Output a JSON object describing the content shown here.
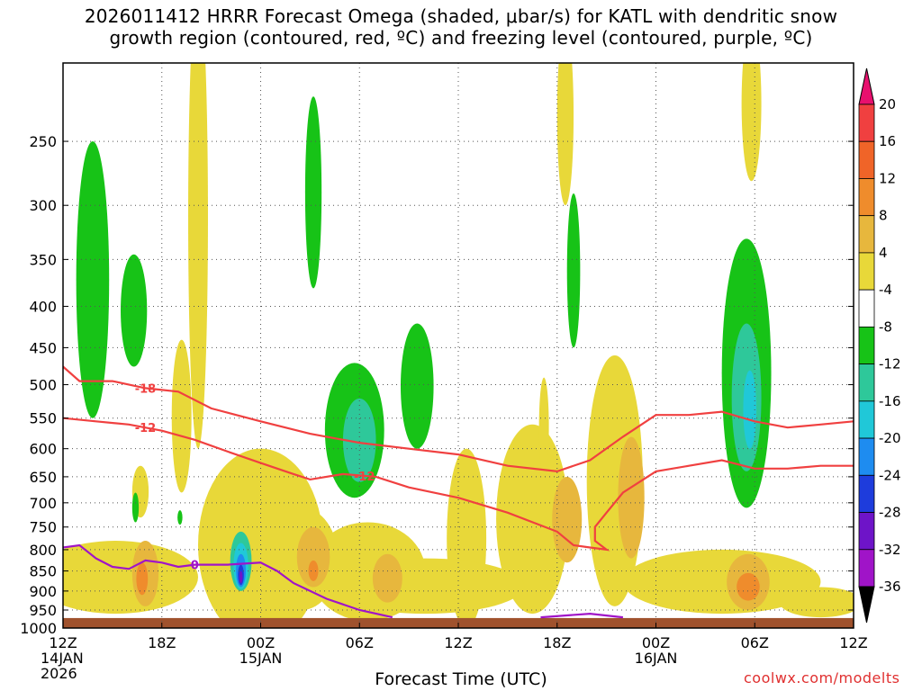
{
  "chart_data": {
    "type": "contour_time_height",
    "title_line1": "2026011412 HRRR Forecast Omega (shaded, μbar/s) for KATL with dendritic snow",
    "title_line2": "growth region (contoured, red, ºC) and freezing level (contoured, purple, ºC)",
    "xlabel": "Forecast Time (UTC)",
    "credit": "coolwx.com/modelts",
    "x_range_hours": [
      0,
      48
    ],
    "y_range_hpa": [
      200,
      1000
    ],
    "y_ticks": [
      250,
      300,
      350,
      400,
      450,
      500,
      550,
      600,
      650,
      700,
      750,
      800,
      850,
      900,
      950,
      1000
    ],
    "x_ticks": [
      {
        "hour": 0,
        "lines": [
          "12Z",
          "14JAN",
          "2026"
        ]
      },
      {
        "hour": 6,
        "lines": [
          "18Z"
        ]
      },
      {
        "hour": 12,
        "lines": [
          "00Z",
          "15JAN"
        ]
      },
      {
        "hour": 18,
        "lines": [
          "06Z"
        ]
      },
      {
        "hour": 24,
        "lines": [
          "12Z"
        ]
      },
      {
        "hour": 30,
        "lines": [
          "18Z"
        ]
      },
      {
        "hour": 36,
        "lines": [
          "00Z",
          "16JAN"
        ]
      },
      {
        "hour": 42,
        "lines": [
          "06Z"
        ]
      },
      {
        "hour": 48,
        "lines": [
          "12Z"
        ]
      }
    ],
    "colorbar": {
      "labels": [
        "20",
        "16",
        "12",
        "8",
        "4",
        "-4",
        "-8",
        "-12",
        "-16",
        "-20",
        "-24",
        "-28",
        "-32",
        "-36"
      ],
      "colors": [
        "#e8106e",
        "#f04040",
        "#f06428",
        "#ef8c2c",
        "#e7b73d",
        "#e8d839",
        "#ffffff",
        "#17c317",
        "#2ec89a",
        "#20c8d8",
        "#1e8cf0",
        "#1e3cdc",
        "#6e14c8",
        "#a014c8",
        "#a0a0a0",
        "#000000"
      ]
    },
    "shade_colors": {
      "y4": "#e8d839",
      "y8": "#e7b73d",
      "y12": "#ef8c2c",
      "g8": "#17c317",
      "g12": "#2ec89a",
      "c16": "#20c8d8",
      "b20": "#1e8cf0",
      "b24": "#1e3cdc",
      "p28": "#6e14c8",
      "ground": "#a0522d"
    },
    "shaded_regions": [
      {
        "level": "y4",
        "cx_h": 8.2,
        "cy_p": 380,
        "rx_h": 0.6,
        "ry_p": 220
      },
      {
        "level": "y4",
        "cx_h": 4.7,
        "cy_p": 680,
        "rx_h": 0.5,
        "ry_p": 50
      },
      {
        "level": "y4",
        "cx_h": 7.2,
        "cy_p": 560,
        "rx_h": 0.6,
        "ry_p": 120
      },
      {
        "level": "y4",
        "cx_h": 12.0,
        "cy_p": 820,
        "rx_h": 3.8,
        "ry_p": 220
      },
      {
        "level": "y4",
        "cx_h": 14.5,
        "cy_p": 830,
        "rx_h": 2.2,
        "ry_p": 120
      },
      {
        "level": "y4",
        "cx_h": 18.5,
        "cy_p": 860,
        "rx_h": 3.5,
        "ry_p": 120
      },
      {
        "level": "y4",
        "cx_h": 24.5,
        "cy_p": 800,
        "rx_h": 1.2,
        "ry_p": 200
      },
      {
        "level": "y4",
        "cx_h": 28.5,
        "cy_p": 760,
        "rx_h": 2.2,
        "ry_p": 200
      },
      {
        "level": "y4",
        "cx_h": 33.5,
        "cy_p": 700,
        "rx_h": 1.7,
        "ry_p": 240
      },
      {
        "level": "y4",
        "cx_h": 3.2,
        "cy_p": 870,
        "rx_h": 5.0,
        "ry_p": 90
      },
      {
        "level": "y4",
        "cx_h": 22.0,
        "cy_p": 890,
        "rx_h": 6.0,
        "ry_p": 70
      },
      {
        "level": "y4",
        "cx_h": 40.0,
        "cy_p": 880,
        "rx_h": 6.0,
        "ry_p": 80
      },
      {
        "level": "y4",
        "cx_h": 46.0,
        "cy_p": 930,
        "rx_h": 2.5,
        "ry_p": 40
      },
      {
        "level": "y4",
        "cx_h": 30.5,
        "cy_p": 240,
        "rx_h": 0.5,
        "ry_p": 60
      },
      {
        "level": "y4",
        "cx_h": 41.8,
        "cy_p": 230,
        "rx_h": 0.6,
        "ry_p": 50
      },
      {
        "level": "y4",
        "cx_h": 29.2,
        "cy_p": 570,
        "rx_h": 0.3,
        "ry_p": 80
      },
      {
        "level": "y8",
        "cx_h": 5.0,
        "cy_p": 860,
        "rx_h": 0.8,
        "ry_p": 80
      },
      {
        "level": "y8",
        "cx_h": 15.2,
        "cy_p": 820,
        "rx_h": 1.0,
        "ry_p": 70
      },
      {
        "level": "y8",
        "cx_h": 19.7,
        "cy_p": 870,
        "rx_h": 0.9,
        "ry_p": 60
      },
      {
        "level": "y8",
        "cx_h": 30.6,
        "cy_p": 740,
        "rx_h": 0.9,
        "ry_p": 90
      },
      {
        "level": "y8",
        "cx_h": 34.5,
        "cy_p": 700,
        "rx_h": 0.8,
        "ry_p": 120
      },
      {
        "level": "y8",
        "cx_h": 41.6,
        "cy_p": 880,
        "rx_h": 1.3,
        "ry_p": 70
      },
      {
        "level": "y12",
        "cx_h": 4.8,
        "cy_p": 870,
        "rx_h": 0.35,
        "ry_p": 40
      },
      {
        "level": "y12",
        "cx_h": 15.2,
        "cy_p": 850,
        "rx_h": 0.3,
        "ry_p": 25
      },
      {
        "level": "y12",
        "cx_h": 41.6,
        "cy_p": 890,
        "rx_h": 0.7,
        "ry_p": 35
      },
      {
        "level": "g8",
        "cx_h": 1.8,
        "cy_p": 400,
        "rx_h": 1.0,
        "ry_p": 150
      },
      {
        "level": "g8",
        "cx_h": 4.3,
        "cy_p": 410,
        "rx_h": 0.8,
        "ry_p": 65
      },
      {
        "level": "g8",
        "cx_h": 15.2,
        "cy_p": 300,
        "rx_h": 0.5,
        "ry_p": 80
      },
      {
        "level": "g8",
        "cx_h": 17.7,
        "cy_p": 580,
        "rx_h": 1.8,
        "ry_p": 110
      },
      {
        "level": "g8",
        "cx_h": 21.5,
        "cy_p": 510,
        "rx_h": 1.0,
        "ry_p": 90
      },
      {
        "level": "g8",
        "cx_h": 31.0,
        "cy_p": 370,
        "rx_h": 0.4,
        "ry_p": 80
      },
      {
        "level": "g8",
        "cx_h": 41.5,
        "cy_p": 520,
        "rx_h": 1.5,
        "ry_p": 190
      },
      {
        "level": "g8",
        "cx_h": 4.4,
        "cy_p": 710,
        "rx_h": 0.2,
        "ry_p": 30
      },
      {
        "level": "g8",
        "cx_h": 7.1,
        "cy_p": 730,
        "rx_h": 0.15,
        "ry_p": 15
      },
      {
        "level": "g12",
        "cx_h": 18.0,
        "cy_p": 590,
        "rx_h": 1.0,
        "ry_p": 70
      },
      {
        "level": "g12",
        "cx_h": 41.5,
        "cy_p": 530,
        "rx_h": 0.9,
        "ry_p": 110
      },
      {
        "level": "g12",
        "cx_h": 10.8,
        "cy_p": 830,
        "rx_h": 0.65,
        "ry_p": 70
      },
      {
        "level": "c16",
        "cx_h": 41.7,
        "cy_p": 540,
        "rx_h": 0.4,
        "ry_p": 60
      },
      {
        "level": "c16",
        "cx_h": 10.8,
        "cy_p": 840,
        "rx_h": 0.45,
        "ry_p": 55
      },
      {
        "level": "b20",
        "cx_h": 10.8,
        "cy_p": 850,
        "rx_h": 0.3,
        "ry_p": 40
      },
      {
        "level": "b24",
        "cx_h": 10.8,
        "cy_p": 860,
        "rx_h": 0.18,
        "ry_p": 25
      },
      {
        "level": "p28",
        "cx_h": 10.8,
        "cy_p": 865,
        "rx_h": 0.1,
        "ry_p": 15
      }
    ],
    "dgz_top_minus18": {
      "label": "-18",
      "label_at_hour": 5,
      "points": [
        [
          0,
          475
        ],
        [
          1,
          495
        ],
        [
          3,
          495
        ],
        [
          5,
          505
        ],
        [
          7,
          510
        ],
        [
          9,
          535
        ],
        [
          12,
          555
        ],
        [
          15,
          575
        ],
        [
          18,
          590
        ],
        [
          21,
          600
        ],
        [
          24,
          610
        ],
        [
          27,
          630
        ],
        [
          30,
          640
        ],
        [
          32,
          620
        ],
        [
          34,
          580
        ],
        [
          36,
          545
        ],
        [
          38,
          545
        ],
        [
          40,
          540
        ],
        [
          42,
          555
        ],
        [
          44,
          565
        ],
        [
          46,
          560
        ],
        [
          48,
          555
        ]
      ]
    },
    "dgz_bottom_minus12": {
      "label": "-12",
      "label_at_hour": 5,
      "label2": "-12",
      "label2_at_hour": 18.3,
      "points": [
        [
          0,
          550
        ],
        [
          2,
          555
        ],
        [
          4,
          560
        ],
        [
          6,
          570
        ],
        [
          8,
          585
        ],
        [
          10,
          605
        ],
        [
          12,
          625
        ],
        [
          14,
          645
        ],
        [
          15,
          655
        ],
        [
          17,
          645
        ],
        [
          19,
          650
        ],
        [
          21,
          670
        ],
        [
          24,
          690
        ],
        [
          27,
          720
        ],
        [
          30,
          760
        ],
        [
          31,
          790
        ],
        [
          32,
          795
        ],
        [
          33,
          800
        ],
        [
          32.3,
          780
        ],
        [
          32.3,
          750
        ],
        [
          33,
          720
        ],
        [
          34,
          680
        ],
        [
          36,
          640
        ],
        [
          38,
          630
        ],
        [
          40,
          620
        ],
        [
          42,
          635
        ],
        [
          44,
          635
        ],
        [
          46,
          630
        ],
        [
          48,
          630
        ]
      ]
    },
    "freezing_level": {
      "label": "0",
      "label_at_hour": 8,
      "points": [
        [
          0,
          795
        ],
        [
          1,
          790
        ],
        [
          2,
          820
        ],
        [
          3,
          840
        ],
        [
          4,
          845
        ],
        [
          5,
          825
        ],
        [
          6,
          830
        ],
        [
          7,
          840
        ],
        [
          8,
          835
        ],
        [
          10,
          835
        ],
        [
          12,
          830
        ],
        [
          13,
          850
        ],
        [
          14,
          880
        ],
        [
          16,
          920
        ],
        [
          18,
          950
        ],
        [
          20,
          970
        ]
      ],
      "points2": [
        [
          29,
          970
        ],
        [
          32,
          960
        ],
        [
          34,
          970
        ]
      ]
    }
  }
}
